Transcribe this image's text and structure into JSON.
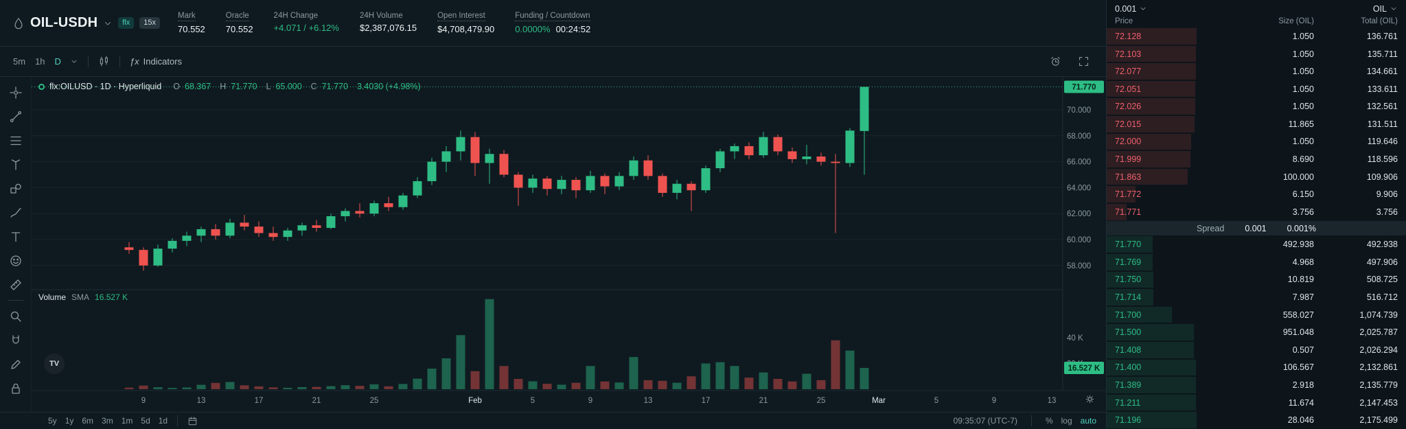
{
  "colors": {
    "green": "#2ebd85",
    "red": "#ef5350",
    "accent": "#50d2c1"
  },
  "header": {
    "ticker": "OIL-USDH",
    "badge_flx": "flx",
    "badge_leverage": "15x",
    "stats": [
      {
        "label": "Mark",
        "value": "70.552"
      },
      {
        "label": "Oracle",
        "value": "70.552"
      },
      {
        "label": "24H Change",
        "value": "+4.071 / +6.12%"
      },
      {
        "label": "24H Volume",
        "value": "$2,387,076.15"
      },
      {
        "label": "Open Interest",
        "value": "$4,708,479.90"
      },
      {
        "label": "Funding / Countdown",
        "value": "0.0000%",
        "value2": "00:24:52"
      }
    ]
  },
  "toolbar": {
    "tf1": "5m",
    "tf2": "1h",
    "tf3": "D",
    "fx": "ƒx",
    "indicators": "Indicators"
  },
  "legend": {
    "symbol": "flx:OILUSD · 1D · Hyperliquid",
    "o_key": "O",
    "o": "68.367",
    "h_key": "H",
    "h": "71.770",
    "l_key": "L",
    "l": "65.000",
    "c_key": "C",
    "c": "71.770",
    "change": "3.4030 (+4.98%)"
  },
  "volume_legend": {
    "title": "Volume",
    "sma": "SMA",
    "value": "16.527 K"
  },
  "watermark": "TV",
  "bottom_bar": {
    "ranges": [
      "5y",
      "1y",
      "6m",
      "3m",
      "1m",
      "5d",
      "1d"
    ],
    "time": "09:35:07 (UTC-7)",
    "percent": "%",
    "log": "log",
    "auto": "auto"
  },
  "orderbook": {
    "tick": "0.001",
    "unit": "OIL",
    "columns": [
      "Price",
      "Size (OIL)",
      "Total (OIL)"
    ],
    "asks": [
      [
        "72.128",
        "1.050",
        "136.761"
      ],
      [
        "72.103",
        "1.050",
        "135.711"
      ],
      [
        "72.077",
        "1.050",
        "134.661"
      ],
      [
        "72.051",
        "1.050",
        "133.611"
      ],
      [
        "72.026",
        "1.050",
        "132.561"
      ],
      [
        "72.015",
        "11.865",
        "131.511"
      ],
      [
        "72.000",
        "1.050",
        "119.646"
      ],
      [
        "71.999",
        "8.690",
        "118.596"
      ],
      [
        "71.863",
        "100.000",
        "109.906"
      ],
      [
        "71.772",
        "6.150",
        "9.906"
      ],
      [
        "71.771",
        "3.756",
        "3.756"
      ]
    ],
    "spread": {
      "label": "Spread",
      "value": "0.001",
      "percent": "0.001%"
    },
    "bids": [
      [
        "71.770",
        "492.938",
        "492.938"
      ],
      [
        "71.769",
        "4.968",
        "497.906"
      ],
      [
        "71.750",
        "10.819",
        "508.725"
      ],
      [
        "71.714",
        "7.987",
        "516.712"
      ],
      [
        "71.700",
        "558.027",
        "1,074.739"
      ],
      [
        "71.500",
        "951.048",
        "2,025.787"
      ],
      [
        "71.408",
        "0.507",
        "2,026.294"
      ],
      [
        "71.400",
        "106.567",
        "2,132.861"
      ],
      [
        "71.389",
        "2.918",
        "2,135.779"
      ],
      [
        "71.211",
        "11.674",
        "2,147.453"
      ],
      [
        "71.196",
        "28.046",
        "2,175.499"
      ]
    ]
  },
  "chart_data": {
    "type": "candlestick",
    "symbol": "flx:OILUSD",
    "interval": "1D",
    "ohlc_current": {
      "o": 68.367,
      "h": 71.77,
      "l": 65.0,
      "c": 71.77,
      "change_pct": "+4.98%"
    },
    "last_price": 71.77,
    "last_price_label": "71.770",
    "current_volume": 16.527,
    "current_volume_label": "16.527 K",
    "price_ticks": [
      {
        "v": 70,
        "label": "70.000"
      },
      {
        "v": 68,
        "label": "68.000"
      },
      {
        "v": 66,
        "label": "66.000"
      },
      {
        "v": 64,
        "label": "64.000"
      },
      {
        "v": 62,
        "label": "62.000"
      },
      {
        "v": 60,
        "label": "60.000"
      },
      {
        "v": 58,
        "label": "58.000"
      }
    ],
    "volume_ticks": [
      {
        "v": 40,
        "label": "40 K"
      },
      {
        "v": 20,
        "label": "20 K"
      }
    ],
    "x_ticks": [
      {
        "i": 1,
        "label": "9"
      },
      {
        "i": 5,
        "label": "13"
      },
      {
        "i": 9,
        "label": "17"
      },
      {
        "i": 13,
        "label": "21"
      },
      {
        "i": 17,
        "label": "25"
      },
      {
        "i": 24,
        "label": "Feb",
        "month": true
      },
      {
        "i": 28,
        "label": "5"
      },
      {
        "i": 32,
        "label": "9"
      },
      {
        "i": 36,
        "label": "13"
      },
      {
        "i": 40,
        "label": "17"
      },
      {
        "i": 44,
        "label": "21"
      },
      {
        "i": 48,
        "label": "25"
      },
      {
        "i": 52,
        "label": "Mar",
        "month": true
      },
      {
        "i": 56,
        "label": "5"
      },
      {
        "i": 60,
        "label": "9"
      },
      {
        "i": 64,
        "label": "13"
      }
    ],
    "candles": [
      [
        59.4,
        59.8,
        58.9,
        59.2,
        1.2
      ],
      [
        59.2,
        59.4,
        57.6,
        58.0,
        2.8
      ],
      [
        58.0,
        59.6,
        57.9,
        59.3,
        1.5
      ],
      [
        59.3,
        60.1,
        59.0,
        59.9,
        1.0
      ],
      [
        59.9,
        60.6,
        59.5,
        60.3,
        1.3
      ],
      [
        60.3,
        61.0,
        59.8,
        60.8,
        3.4
      ],
      [
        60.8,
        61.2,
        60.0,
        60.3,
        4.9
      ],
      [
        60.3,
        61.6,
        60.1,
        61.3,
        5.6
      ],
      [
        61.3,
        61.9,
        60.7,
        61.0,
        3.0
      ],
      [
        61.0,
        61.4,
        60.2,
        60.5,
        2.2
      ],
      [
        60.5,
        61.0,
        59.9,
        60.2,
        1.4
      ],
      [
        60.2,
        60.9,
        59.9,
        60.7,
        1.1
      ],
      [
        60.7,
        61.3,
        60.3,
        61.1,
        1.6
      ],
      [
        61.1,
        61.5,
        60.6,
        60.9,
        1.8
      ],
      [
        60.9,
        62.0,
        60.8,
        61.8,
        2.4
      ],
      [
        61.8,
        62.4,
        61.4,
        62.2,
        3.1
      ],
      [
        62.2,
        62.8,
        61.7,
        62.0,
        2.6
      ],
      [
        62.0,
        63.0,
        61.8,
        62.8,
        3.8
      ],
      [
        62.8,
        63.3,
        62.2,
        62.5,
        2.2
      ],
      [
        62.5,
        63.6,
        62.3,
        63.4,
        4.1
      ],
      [
        63.4,
        64.8,
        63.2,
        64.5,
        8.2
      ],
      [
        64.5,
        66.3,
        64.2,
        66.0,
        16.0
      ],
      [
        66.0,
        67.2,
        65.2,
        66.8,
        24.0
      ],
      [
        66.8,
        68.4,
        66.1,
        67.9,
        42.0
      ],
      [
        67.9,
        68.3,
        64.9,
        65.9,
        14.0
      ],
      [
        65.9,
        67.0,
        64.3,
        66.6,
        70.0
      ],
      [
        66.6,
        66.9,
        64.8,
        65.0,
        18.0
      ],
      [
        65.0,
        65.2,
        62.6,
        64.0,
        8.0
      ],
      [
        64.0,
        65.0,
        63.6,
        64.7,
        6.1
      ],
      [
        64.7,
        64.9,
        63.4,
        63.9,
        4.2
      ],
      [
        63.9,
        64.9,
        63.5,
        64.6,
        3.5
      ],
      [
        64.6,
        64.8,
        63.2,
        63.8,
        5.0
      ],
      [
        63.8,
        65.3,
        63.6,
        64.9,
        18.0
      ],
      [
        64.9,
        65.1,
        63.5,
        64.1,
        6.0
      ],
      [
        64.1,
        65.2,
        63.8,
        64.9,
        5.2
      ],
      [
        64.9,
        66.4,
        64.6,
        66.1,
        25.0
      ],
      [
        66.1,
        66.5,
        64.6,
        64.9,
        7.0
      ],
      [
        64.9,
        65.1,
        63.3,
        63.6,
        6.5
      ],
      [
        63.6,
        64.6,
        63.1,
        64.3,
        5.0
      ],
      [
        64.3,
        64.5,
        62.2,
        63.8,
        10.0
      ],
      [
        63.8,
        65.7,
        63.6,
        65.5,
        20.0
      ],
      [
        65.5,
        67.0,
        65.2,
        66.8,
        21.0
      ],
      [
        66.8,
        67.4,
        66.2,
        67.2,
        18.0
      ],
      [
        67.2,
        67.5,
        66.2,
        66.5,
        9.0
      ],
      [
        66.5,
        68.3,
        66.3,
        67.9,
        13.0
      ],
      [
        67.9,
        68.1,
        66.5,
        66.8,
        8.0
      ],
      [
        66.8,
        67.1,
        65.9,
        66.2,
        6.0
      ],
      [
        66.2,
        67.3,
        65.8,
        66.4,
        12.0
      ],
      [
        66.4,
        66.7,
        65.7,
        66.0,
        7.0
      ],
      [
        66.0,
        66.6,
        60.5,
        65.9,
        38.0
      ],
      [
        65.9,
        68.6,
        65.6,
        68.4,
        30.0
      ],
      [
        68.367,
        71.77,
        65.0,
        71.77,
        16.527
      ]
    ]
  }
}
